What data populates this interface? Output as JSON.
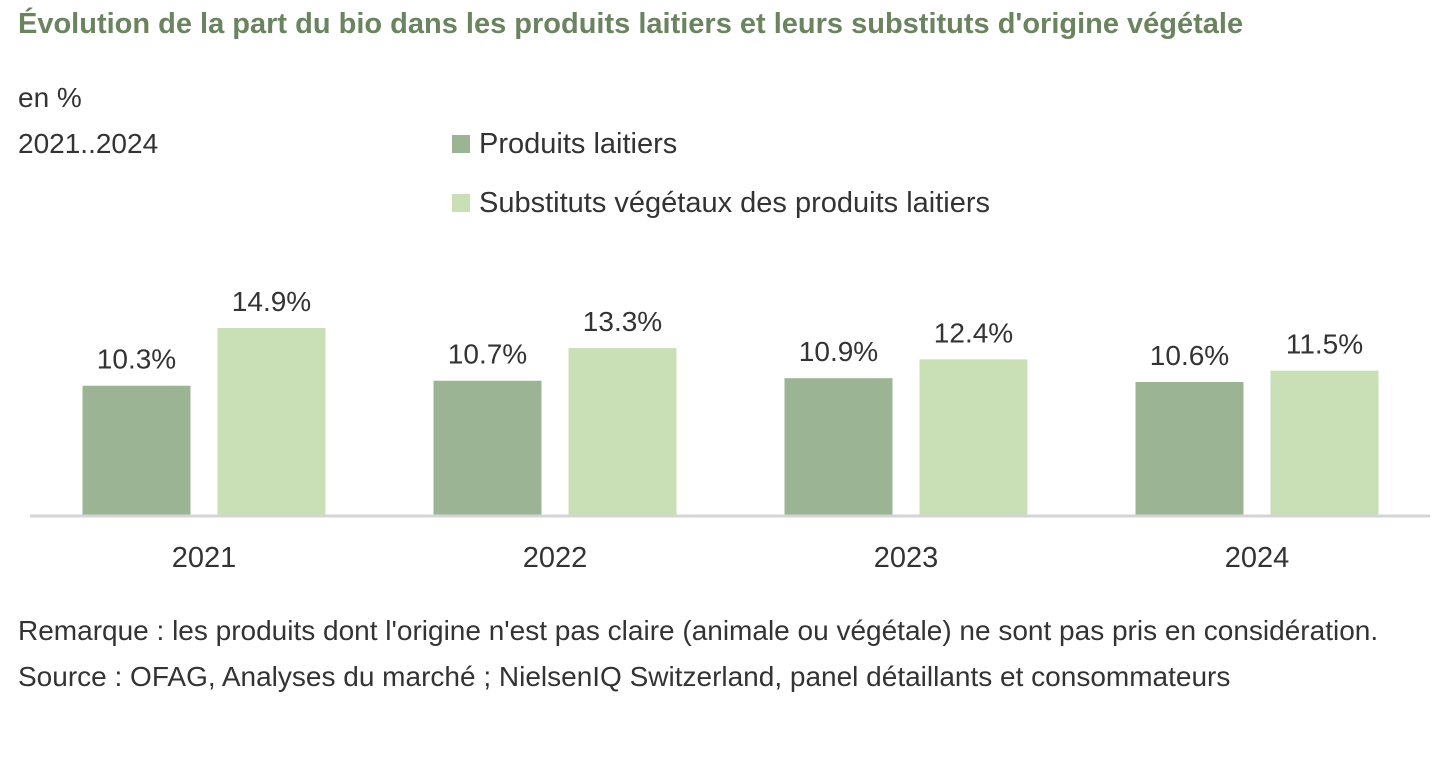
{
  "header": {
    "title": "Évolution de la part du bio dans les produits laitiers et leurs substituts d'origine végétale",
    "unit": "en %",
    "period": "2021..2024"
  },
  "legend": [
    {
      "label": "Produits laitiers",
      "color": "#9bb493"
    },
    {
      "label": "Substituts végétaux des produits laitiers",
      "color": "#c9e0b6"
    }
  ],
  "chart_data": {
    "type": "bar",
    "title": "Évolution de la part du bio dans les produits laitiers et leurs substituts d'origine végétale",
    "xlabel": "",
    "ylabel": "",
    "categories": [
      "2021",
      "2022",
      "2023",
      "2024"
    ],
    "series": [
      {
        "name": "Produits laitiers",
        "color": "#9bb493",
        "values": [
          10.3,
          10.7,
          10.9,
          10.6
        ]
      },
      {
        "name": "Substituts végétaux des produits laitiers",
        "color": "#c9e0b6",
        "values": [
          14.9,
          13.3,
          12.4,
          11.5
        ]
      }
    ],
    "ylim": [
      0,
      20
    ],
    "grid": false,
    "legend_position": "top",
    "value_suffix": "%"
  },
  "footer": {
    "remark": "Remarque : les produits dont l'origine n'est pas claire (animale ou végétale) ne sont pas pris en considération.",
    "source": "Source : OFAG, Analyses du marché ; NielsenIQ Switzerland, panel détaillants et consommateurs"
  }
}
